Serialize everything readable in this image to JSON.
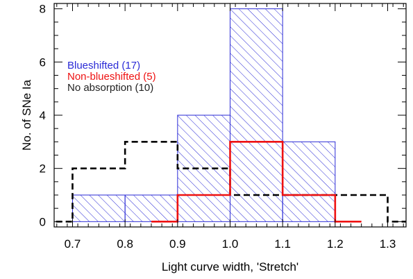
{
  "chart_data": {
    "type": "histogram",
    "xlabel": "Light curve width, 'Stretch'",
    "ylabel": "No. of SNe Ia",
    "xlim": [
      0.665,
      1.335
    ],
    "ylim": [
      -0.2,
      8.2
    ],
    "x_ticks": [
      0.7,
      0.8,
      0.9,
      1.0,
      1.1,
      1.2,
      1.3
    ],
    "x_tick_labels": [
      "0.7",
      "0.8",
      "0.9",
      "1.0",
      "1.1",
      "1.2",
      "1.3"
    ],
    "y_ticks": [
      0,
      2,
      4,
      6,
      8
    ],
    "y_tick_labels": [
      "0",
      "2",
      "4",
      "6",
      "8"
    ],
    "grid": false,
    "legend_placement": "upper-left",
    "series": [
      {
        "name": "Blueshifted (17)",
        "style": "hatched-fill",
        "color": "#2a2ad6",
        "bins": [
          {
            "x0": 0.7,
            "x1": 0.8,
            "count": 1
          },
          {
            "x0": 0.8,
            "x1": 0.9,
            "count": 1
          },
          {
            "x0": 0.9,
            "x1": 1.0,
            "count": 4
          },
          {
            "x0": 1.0,
            "x1": 1.1,
            "count": 8
          },
          {
            "x0": 1.1,
            "x1": 1.2,
            "count": 3
          }
        ]
      },
      {
        "name": "Non-blueshifted (5)",
        "style": "solid-line",
        "color": "#ee1111",
        "bins": [
          {
            "x0": 0.85,
            "x1": 0.9,
            "count": 0
          },
          {
            "x0": 0.9,
            "x1": 1.0,
            "count": 1
          },
          {
            "x0": 1.0,
            "x1": 1.1,
            "count": 3
          },
          {
            "x0": 1.1,
            "x1": 1.2,
            "count": 1
          },
          {
            "x0": 1.2,
            "x1": 1.25,
            "count": 0
          }
        ]
      },
      {
        "name": "No absorption (10)",
        "style": "dashed-line",
        "color": "#000000",
        "bins": [
          {
            "x0": 0.65,
            "x1": 0.7,
            "count": 0
          },
          {
            "x0": 0.7,
            "x1": 0.8,
            "count": 2
          },
          {
            "x0": 0.8,
            "x1": 0.9,
            "count": 3
          },
          {
            "x0": 0.9,
            "x1": 1.0,
            "count": 2
          },
          {
            "x0": 1.0,
            "x1": 1.1,
            "count": 1
          },
          {
            "x0": 1.1,
            "x1": 1.2,
            "count": 1
          },
          {
            "x0": 1.2,
            "x1": 1.3,
            "count": 1
          },
          {
            "x0": 1.3,
            "x1": 1.35,
            "count": 0
          }
        ]
      }
    ]
  },
  "legend": {
    "items": [
      {
        "label": "Blueshifted (17)",
        "color": "#2a2ad6"
      },
      {
        "label": "Non-blueshifted (5)",
        "color": "#ee1111"
      },
      {
        "label": "No absorption (10)",
        "color": "#222222"
      }
    ]
  }
}
